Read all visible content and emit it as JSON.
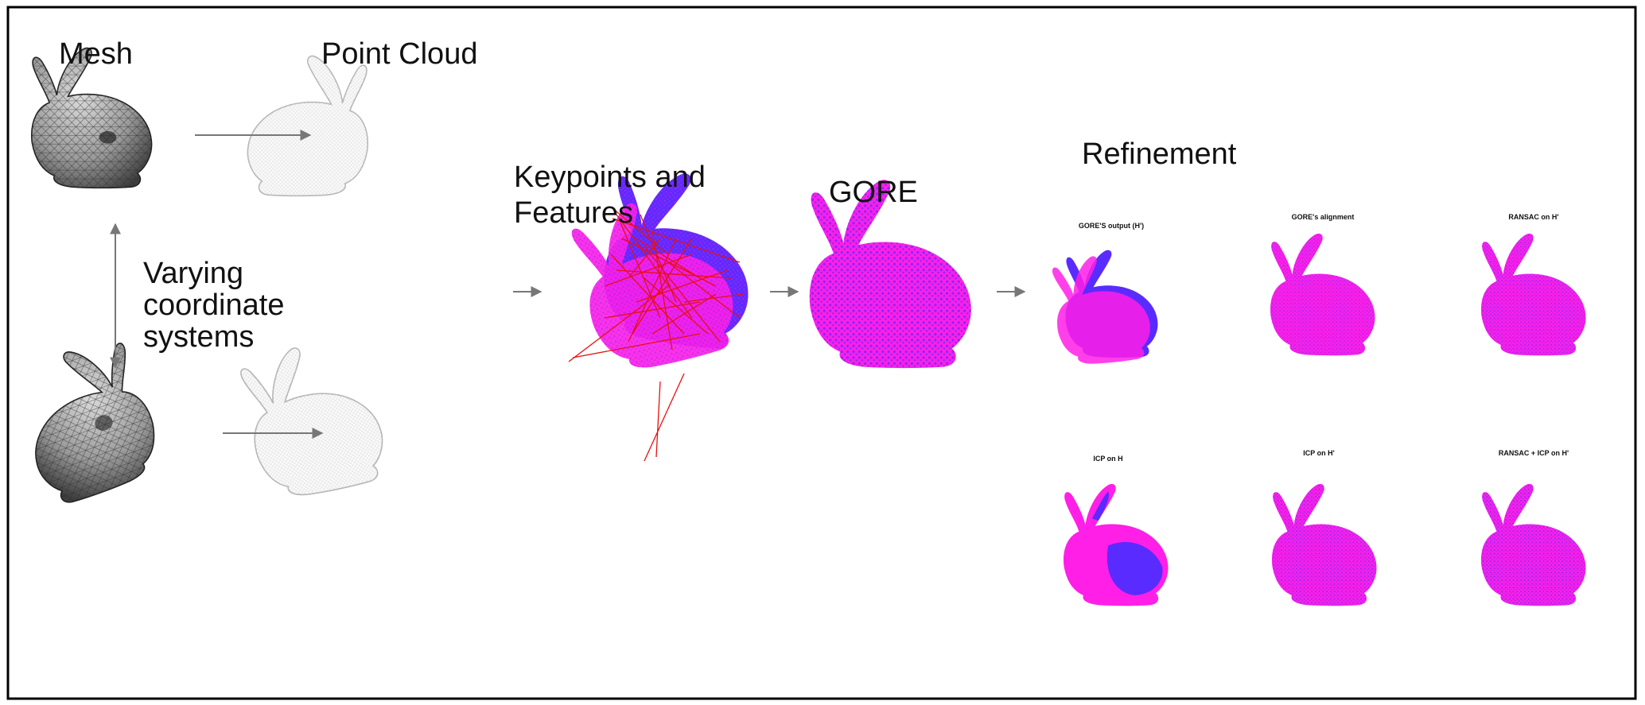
{
  "labels": {
    "mesh": "Mesh",
    "point_cloud": "Point Cloud",
    "varying_line1": "Varying",
    "varying_line2": "coordinate",
    "varying_line3": "systems",
    "keypoints_line1": "Keypoints and",
    "keypoints_line2": "Features",
    "gore": "GORE",
    "refinement": "Refinement"
  },
  "refinement_panels": [
    {
      "caption": "GORE'S output (H')"
    },
    {
      "caption": "GORE's alignment"
    },
    {
      "caption": "RANSAC on H'"
    },
    {
      "caption": "ICP on H"
    },
    {
      "caption": "ICP on H'"
    },
    {
      "caption": "RANSAC + ICP on H'"
    }
  ],
  "colors": {
    "frame": "#000000",
    "arrow": "#777777",
    "mesh_fill": "#8c8c8c",
    "mesh_light": "#d8d8d8",
    "cloud_stroke": "#b5b5b5",
    "magenta": "#ff1fe6",
    "blue": "#5a2bff",
    "correspondence_red": "#e81010"
  }
}
